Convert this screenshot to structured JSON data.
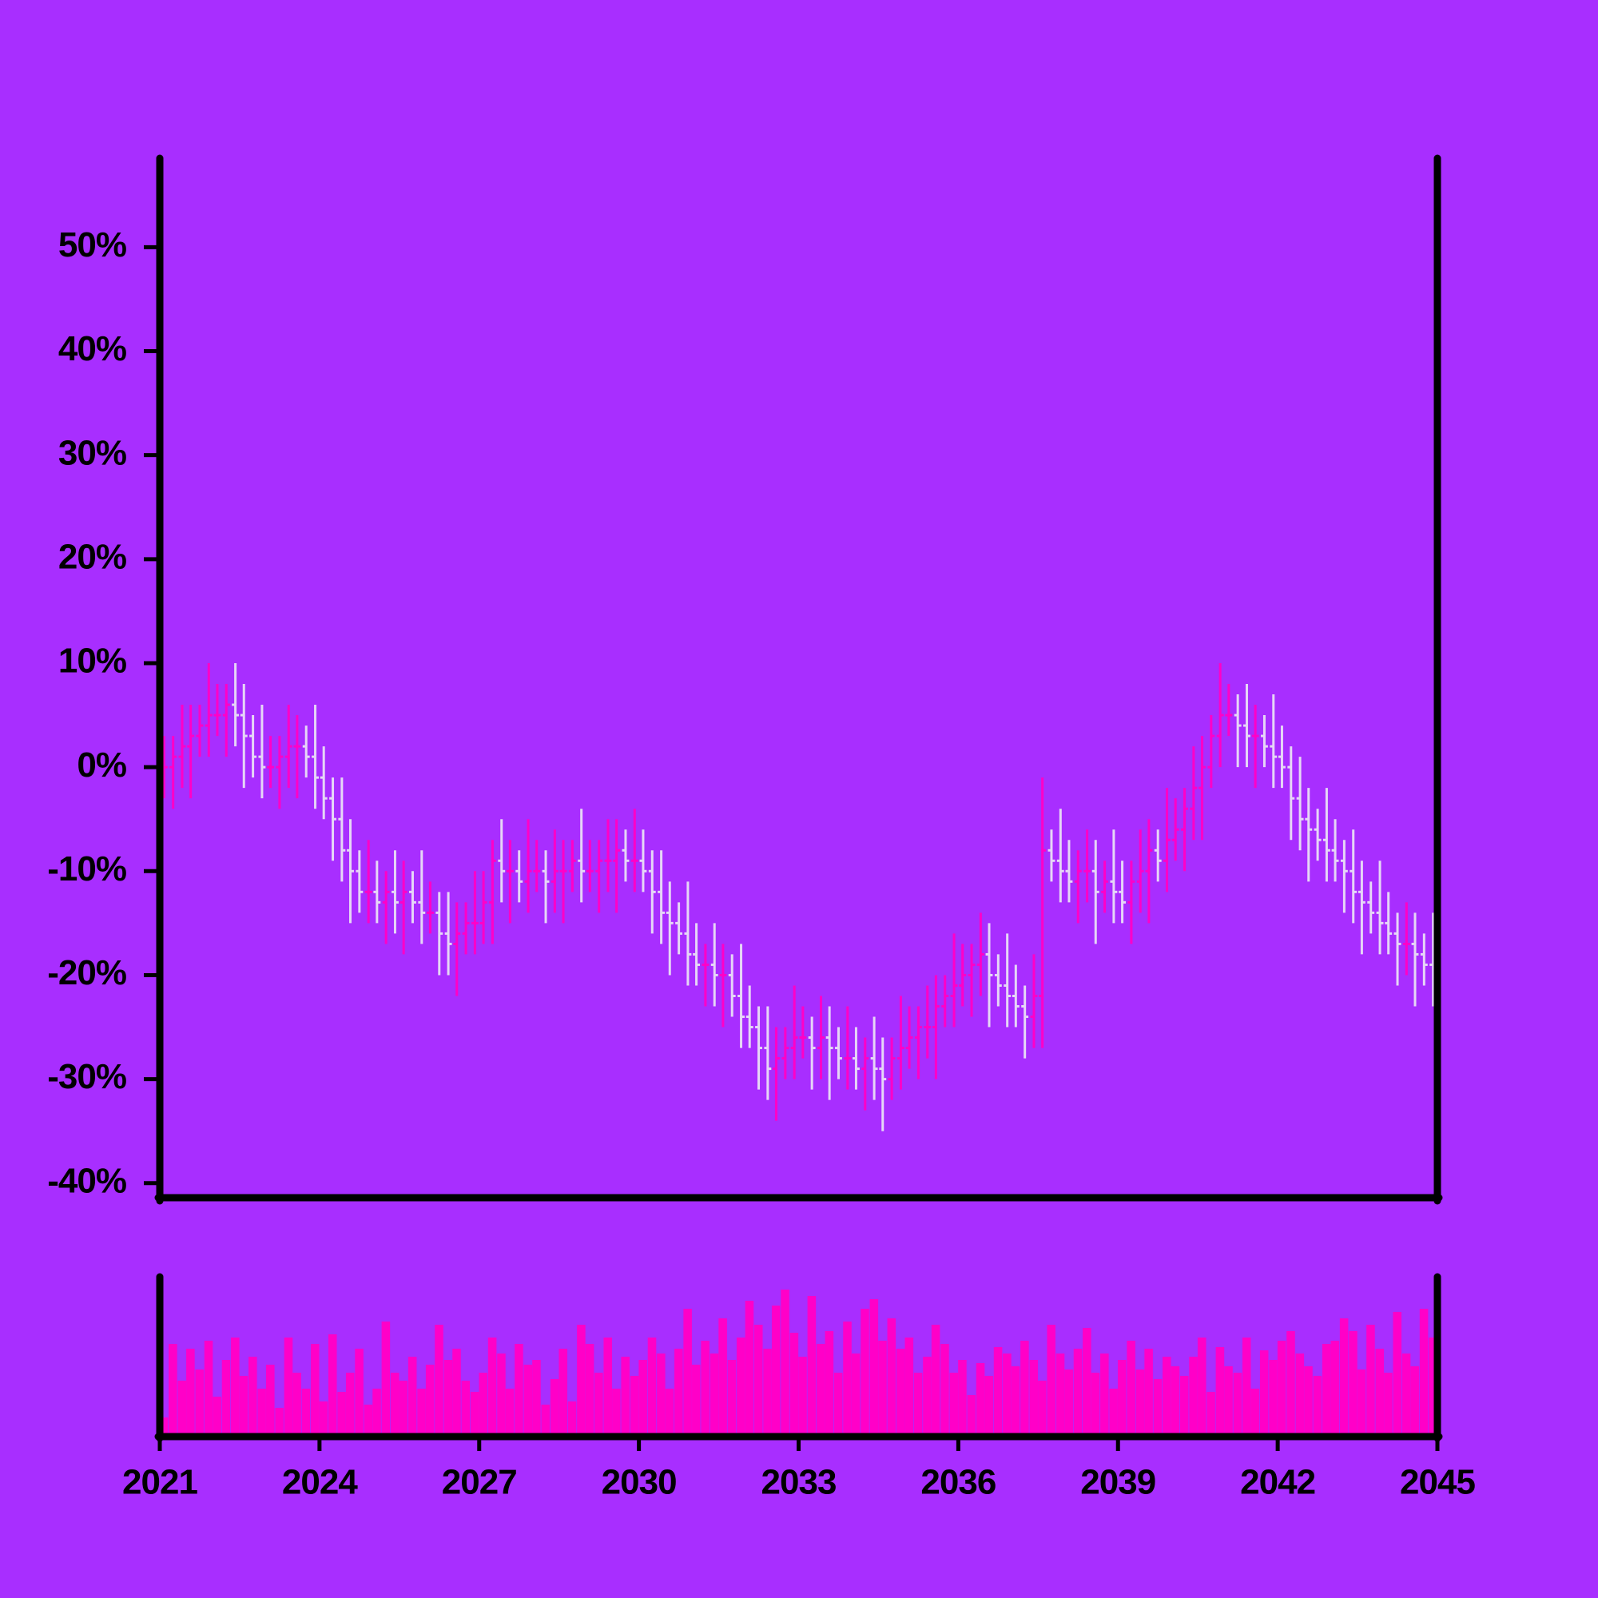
{
  "chart_data": {
    "type": "ohlc",
    "up_color": "#ff00c8",
    "down_color": "#e6d6f6",
    "volume_color": "#ff00c8",
    "background": "#a82eff",
    "xlim": [
      2021,
      2045
    ],
    "xticks": [
      2021,
      2024,
      2027,
      2030,
      2033,
      2036,
      2039,
      2042,
      2045
    ],
    "ylim": [
      -41.4,
      58.4
    ],
    "yticks": [
      {
        "value": -40,
        "label": "-40%"
      },
      {
        "value": -30,
        "label": "-30%"
      },
      {
        "value": -20,
        "label": "-20%"
      },
      {
        "value": -10,
        "label": "-10%"
      },
      {
        "value": 0,
        "label": "0%"
      },
      {
        "value": 10,
        "label": "10%"
      },
      {
        "value": 20,
        "label": "20%"
      },
      {
        "value": 30,
        "label": "30%"
      },
      {
        "value": 40,
        "label": "40%"
      },
      {
        "value": 50,
        "label": "50%"
      }
    ],
    "volume_lim": [
      0,
      100
    ],
    "x": [
      2021.08,
      2021.25,
      2021.42,
      2021.58,
      2021.75,
      2021.92,
      2022.08,
      2022.25,
      2022.42,
      2022.58,
      2022.75,
      2022.92,
      2023.08,
      2023.25,
      2023.42,
      2023.58,
      2023.75,
      2023.92,
      2024.08,
      2024.25,
      2024.42,
      2024.58,
      2024.75,
      2024.92,
      2025.08,
      2025.25,
      2025.42,
      2025.58,
      2025.75,
      2025.92,
      2026.08,
      2026.25,
      2026.42,
      2026.58,
      2026.75,
      2026.92,
      2027.08,
      2027.25,
      2027.42,
      2027.58,
      2027.75,
      2027.92,
      2028.08,
      2028.25,
      2028.42,
      2028.58,
      2028.75,
      2028.92,
      2029.08,
      2029.25,
      2029.42,
      2029.58,
      2029.75,
      2029.92,
      2030.08,
      2030.25,
      2030.42,
      2030.58,
      2030.75,
      2030.92,
      2031.08,
      2031.25,
      2031.42,
      2031.58,
      2031.75,
      2031.92,
      2032.08,
      2032.25,
      2032.42,
      2032.58,
      2032.75,
      2032.92,
      2033.08,
      2033.25,
      2033.42,
      2033.58,
      2033.75,
      2033.92,
      2034.08,
      2034.25,
      2034.42,
      2034.58,
      2034.75,
      2034.92,
      2035.08,
      2035.25,
      2035.42,
      2035.58,
      2035.75,
      2035.92,
      2036.08,
      2036.25,
      2036.42,
      2036.58,
      2036.75,
      2036.92,
      2037.08,
      2037.25,
      2037.42,
      2037.58,
      2037.75,
      2037.92,
      2038.08,
      2038.25,
      2038.42,
      2038.58,
      2038.75,
      2038.92,
      2039.08,
      2039.25,
      2039.42,
      2039.58,
      2039.75,
      2039.92,
      2040.08,
      2040.25,
      2040.42,
      2040.58,
      2040.75,
      2040.92,
      2041.08,
      2041.25,
      2041.42,
      2041.58,
      2041.75,
      2041.92,
      2042.08,
      2042.25,
      2042.42,
      2042.58,
      2042.75,
      2042.92,
      2043.08,
      2043.25,
      2043.42,
      2043.58,
      2043.75,
      2043.92,
      2044.08,
      2044.25,
      2044.42,
      2044.58,
      2044.75,
      2044.92
    ],
    "open": [
      -1,
      0,
      1,
      2,
      3,
      4,
      5,
      5,
      6,
      5,
      3,
      1,
      0,
      0,
      1,
      2,
      2,
      1,
      -1,
      -3,
      -5,
      -8,
      -10,
      -12,
      -12,
      -13,
      -12,
      -13,
      -12,
      -13,
      -14,
      -14,
      -16,
      -17,
      -16,
      -15,
      -15,
      -13,
      -9,
      -10,
      -10,
      -11,
      -10,
      -10,
      -11,
      -10,
      -10,
      -9,
      -10,
      -10,
      -9,
      -9,
      -8,
      -9,
      -9,
      -10,
      -12,
      -14,
      -15,
      -16,
      -18,
      -19,
      -19,
      -20,
      -20,
      -22,
      -24,
      -25,
      -27,
      -29,
      -28,
      -27,
      -26,
      -26,
      -27,
      -26,
      -27,
      -28,
      -28,
      -29,
      -28,
      -29,
      -30,
      -28,
      -27,
      -26,
      -25,
      -25,
      -23,
      -22,
      -21,
      -20,
      -19,
      -18,
      -20,
      -21,
      -22,
      -23,
      -24,
      -22,
      -8,
      -9,
      -10,
      -11,
      -10,
      -10,
      -12,
      -11,
      -12,
      -13,
      -11,
      -10,
      -8,
      -9,
      -7,
      -6,
      -4,
      -2,
      0,
      3,
      5,
      5,
      4,
      3,
      3,
      2,
      1,
      0,
      -3,
      -5,
      -6,
      -7,
      -8,
      -9,
      -10,
      -12,
      -13,
      -14,
      -15,
      -16,
      -17,
      -17,
      -18,
      -19
    ],
    "high": [
      3,
      3,
      6,
      6,
      6,
      10,
      8,
      8,
      10,
      8,
      5,
      6,
      3,
      3,
      6,
      5,
      4,
      6,
      2,
      -1,
      -1,
      -5,
      -8,
      -7,
      -9,
      -10,
      -8,
      -9,
      -10,
      -8,
      -11,
      -12,
      -12,
      -13,
      -13,
      -10,
      -10,
      -7,
      -5,
      -7,
      -8,
      -5,
      -7,
      -8,
      -6,
      -7,
      -7,
      -4,
      -7,
      -7,
      -5,
      -5,
      -6,
      -4,
      -6,
      -8,
      -8,
      -11,
      -13,
      -11,
      -15,
      -17,
      -15,
      -17,
      -18,
      -17,
      -21,
      -23,
      -23,
      -25,
      -25,
      -21,
      -23,
      -24,
      -22,
      -23,
      -25,
      -23,
      -25,
      -26,
      -24,
      -26,
      -26,
      -22,
      -23,
      -23,
      -21,
      -20,
      -20,
      -16,
      -17,
      -17,
      -14,
      -15,
      -18,
      -16,
      -19,
      -21,
      -18,
      -1,
      -6,
      -4,
      -7,
      -8,
      -6,
      -7,
      -9,
      -6,
      -9,
      -9,
      -6,
      -5,
      -6,
      -2,
      -3,
      -2,
      2,
      3,
      5,
      10,
      8,
      7,
      8,
      6,
      5,
      7,
      4,
      2,
      1,
      -2,
      -4,
      -2,
      -5,
      -7,
      -6,
      -9,
      -11,
      -9,
      -12,
      -14,
      -13,
      -14,
      -16,
      -14
    ],
    "low": [
      -3,
      -4,
      -2,
      -3,
      1,
      1,
      3,
      1,
      2,
      -2,
      -1,
      -3,
      -2,
      -4,
      -2,
      -3,
      -1,
      -4,
      -5,
      -9,
      -11,
      -15,
      -14,
      -15,
      -15,
      -17,
      -16,
      -18,
      -15,
      -17,
      -16,
      -20,
      -20,
      -22,
      -18,
      -18,
      -17,
      -17,
      -13,
      -15,
      -13,
      -14,
      -12,
      -15,
      -14,
      -15,
      -12,
      -13,
      -12,
      -14,
      -12,
      -14,
      -11,
      -12,
      -12,
      -16,
      -17,
      -20,
      -18,
      -21,
      -21,
      -23,
      -23,
      -25,
      -24,
      -27,
      -27,
      -31,
      -32,
      -34,
      -30,
      -30,
      -28,
      -31,
      -30,
      -32,
      -30,
      -31,
      -31,
      -33,
      -32,
      -35,
      -32,
      -31,
      -29,
      -30,
      -28,
      -30,
      -25,
      -25,
      -23,
      -24,
      -22,
      -25,
      -23,
      -25,
      -25,
      -28,
      -27,
      -27,
      -11,
      -13,
      -13,
      -15,
      -13,
      -17,
      -14,
      -15,
      -15,
      -17,
      -14,
      -15,
      -11,
      -12,
      -9,
      -10,
      -7,
      -7,
      -2,
      0,
      3,
      0,
      0,
      -2,
      0,
      -2,
      -2,
      -7,
      -8,
      -11,
      -9,
      -11,
      -11,
      -14,
      -15,
      -18,
      -16,
      -18,
      -18,
      -21,
      -20,
      -23,
      -21,
      -23
    ],
    "close": [
      0,
      1,
      2,
      3,
      4,
      5,
      5,
      6,
      5,
      3,
      1,
      0,
      0,
      1,
      2,
      2,
      1,
      -1,
      -3,
      -5,
      -8,
      -10,
      -12,
      -12,
      -13,
      -12,
      -13,
      -12,
      -13,
      -14,
      -14,
      -16,
      -17,
      -16,
      -15,
      -15,
      -13,
      -9,
      -10,
      -10,
      -11,
      -10,
      -10,
      -11,
      -10,
      -10,
      -9,
      -10,
      -10,
      -9,
      -9,
      -8,
      -9,
      -9,
      -10,
      -12,
      -14,
      -15,
      -16,
      -18,
      -19,
      -19,
      -20,
      -20,
      -22,
      -24,
      -25,
      -27,
      -29,
      -28,
      -27,
      -26,
      -26,
      -27,
      -26,
      -27,
      -28,
      -28,
      -29,
      -28,
      -29,
      -30,
      -28,
      -27,
      -26,
      -25,
      -25,
      -23,
      -22,
      -21,
      -20,
      -19,
      -18,
      -20,
      -21,
      -22,
      -23,
      -24,
      -22,
      -8,
      -9,
      -10,
      -11,
      -10,
      -10,
      -12,
      -11,
      -12,
      -13,
      -11,
      -10,
      -8,
      -9,
      -7,
      -6,
      -4,
      -2,
      0,
      3,
      5,
      5,
      4,
      3,
      3,
      2,
      1,
      0,
      -3,
      -5,
      -6,
      -7,
      -8,
      -9,
      -10,
      -12,
      -13,
      -14,
      -15,
      -16,
      -17,
      -17,
      -18,
      -19,
      -20
    ],
    "volume": [
      12,
      58,
      35,
      55,
      42,
      60,
      25,
      48,
      62,
      38,
      50,
      30,
      45,
      18,
      62,
      40,
      30,
      58,
      22,
      64,
      28,
      40,
      55,
      20,
      30,
      72,
      40,
      35,
      50,
      30,
      45,
      70,
      48,
      55,
      35,
      28,
      40,
      62,
      52,
      30,
      58,
      45,
      48,
      20,
      36,
      55,
      22,
      70,
      58,
      40,
      62,
      30,
      50,
      38,
      48,
      62,
      52,
      30,
      55,
      80,
      45,
      60,
      52,
      74,
      48,
      62,
      85,
      70,
      55,
      82,
      92,
      65,
      50,
      88,
      58,
      66,
      40,
      72,
      52,
      80,
      86,
      60,
      74,
      55,
      62,
      40,
      50,
      70,
      58,
      40,
      48,
      26,
      46,
      38,
      56,
      52,
      44,
      60,
      48,
      35,
      70,
      52,
      42,
      55,
      68,
      40,
      52,
      30,
      48,
      60,
      42,
      55,
      36,
      50,
      44,
      38,
      50,
      62,
      28,
      56,
      44,
      40,
      62,
      30,
      54,
      48,
      60,
      66,
      52,
      44,
      38,
      58,
      60,
      74,
      66,
      42,
      70,
      55,
      40,
      78,
      52,
      44,
      80,
      62
    ]
  }
}
